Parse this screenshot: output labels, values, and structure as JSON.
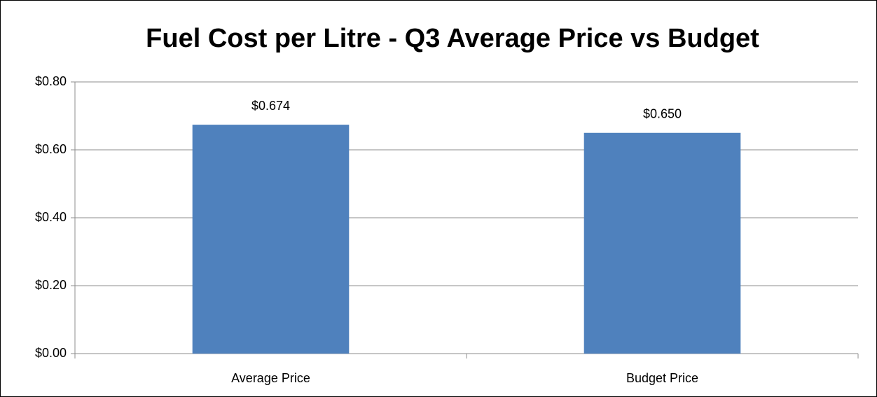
{
  "chart_data": {
    "type": "bar",
    "title": "Fuel Cost per Litre - Q3 Average Price vs Budget",
    "categories": [
      "Average Price",
      "Budget Price"
    ],
    "values": [
      0.674,
      0.65
    ],
    "value_labels": [
      "$0.674",
      "$0.650"
    ],
    "color": "#4f81bd",
    "ylim": [
      0,
      0.8
    ],
    "yticks": [
      {
        "value": 0,
        "label": "$0.00"
      },
      {
        "value": 0.2,
        "label": "$0.20"
      },
      {
        "value": 0.4,
        "label": "$0.40"
      },
      {
        "value": 0.6,
        "label": "$0.60"
      },
      {
        "value": 0.8,
        "label": "$0.80"
      }
    ],
    "grid": true
  }
}
